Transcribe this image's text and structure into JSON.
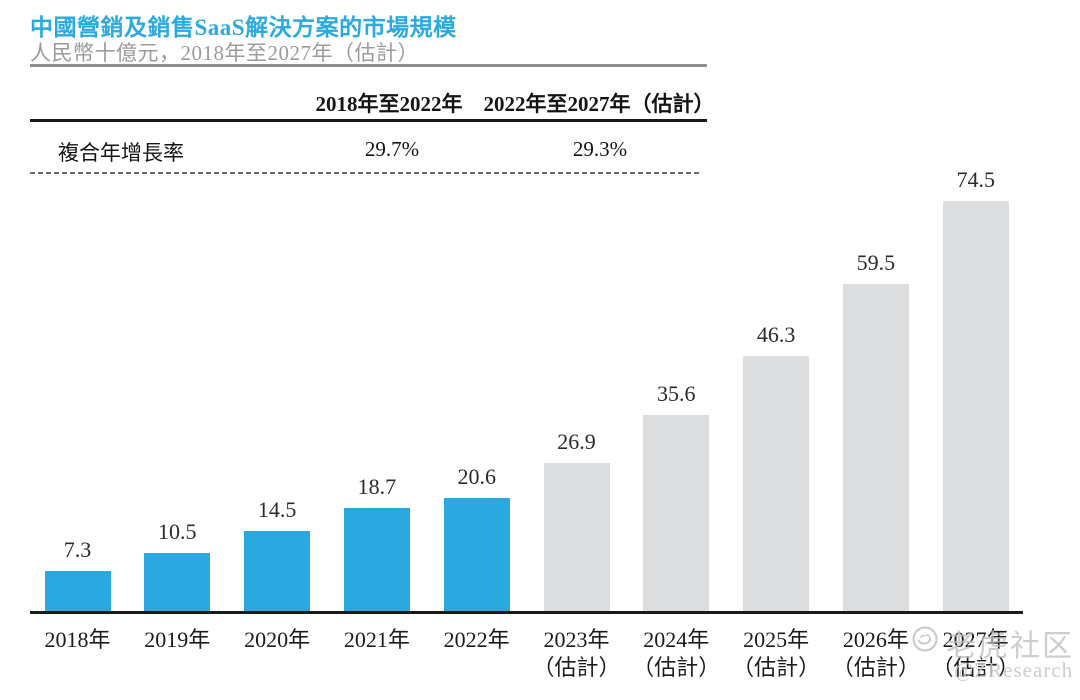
{
  "page": {
    "title": "中國營銷及銷售SaaS解決方案的市場規模",
    "subtitle": "人民幣十億元，2018年至2027年（估計）"
  },
  "table": {
    "col_headers": [
      "2018年至2022年",
      "2022年至2027年（估計）"
    ],
    "rows": [
      {
        "label": "複合年增長率",
        "values": [
          "29.7%",
          "29.3%"
        ]
      }
    ]
  },
  "chart_data": {
    "type": "bar",
    "title": "中國營銷及銷售SaaS解決方案的市場規模",
    "ylabel": "人民幣十億元",
    "categories": [
      {
        "year": "2018年",
        "note": "",
        "estimate": false
      },
      {
        "year": "2019年",
        "note": "",
        "estimate": false
      },
      {
        "year": "2020年",
        "note": "",
        "estimate": false
      },
      {
        "year": "2021年",
        "note": "",
        "estimate": false
      },
      {
        "year": "2022年",
        "note": "",
        "estimate": false
      },
      {
        "year": "2023年",
        "note": "（估計）",
        "estimate": true
      },
      {
        "year": "2024年",
        "note": "（估計）",
        "estimate": true
      },
      {
        "year": "2025年",
        "note": "（估計）",
        "estimate": true
      },
      {
        "year": "2026年",
        "note": "（估計）",
        "estimate": true
      },
      {
        "year": "2027年",
        "note": "（估計）",
        "estimate": true
      }
    ],
    "values": [
      7.3,
      10.5,
      14.5,
      18.7,
      20.6,
      26.9,
      35.6,
      46.3,
      59.5,
      74.5
    ],
    "value_labels": [
      "7.3",
      "10.5",
      "14.5",
      "18.7",
      "20.6",
      "26.9",
      "35.6",
      "46.3",
      "59.5",
      "74.5"
    ],
    "cagr_2018_2022": "29.7%",
    "cagr_2022_2027": "29.3%",
    "bar_color_actual": "#29A9E0",
    "bar_color_estimate": "#DCDDDE",
    "axis_color": "#1a1a1a",
    "ylim": [
      0,
      80
    ],
    "grid": false,
    "legend": "none",
    "value_labels_shown": true
  },
  "watermark": {
    "brand": "老虎社区",
    "handle": "@ZResearch"
  }
}
